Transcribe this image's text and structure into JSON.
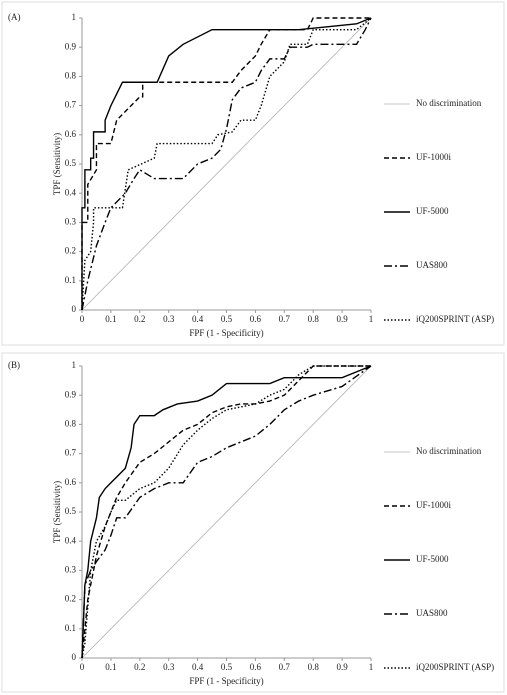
{
  "chart_data": [
    {
      "type": "line",
      "label": "(A)",
      "x_label": "FPF (1 - Specificity)",
      "y_label": "TPF (Sensitivity)",
      "xlim": [
        0,
        1
      ],
      "ylim": [
        0,
        1
      ],
      "xticks": [
        0,
        0.1,
        0.2,
        0.3,
        0.4,
        0.5,
        0.6,
        0.7,
        0.8,
        0.9,
        1
      ],
      "yticks": [
        0,
        0.1,
        0.2,
        0.3,
        0.4,
        0.5,
        0.6,
        0.7,
        0.8,
        0.9,
        1
      ],
      "legend": "right",
      "series": [
        {
          "name": "No discrimination",
          "color": "#b0b0b0",
          "dash": "none",
          "x": [
            0,
            1
          ],
          "values": [
            0,
            1
          ]
        },
        {
          "name": "UF-1000i",
          "color": "#000000",
          "dash": "5,3",
          "x": [
            0,
            0,
            0.02,
            0.02,
            0.05,
            0.05,
            0.1,
            0.12,
            0.14,
            0.17,
            0.2,
            0.21,
            0.21,
            0.3,
            0.52,
            0.55,
            0.6,
            0.62,
            0.65,
            0.78,
            0.8,
            0.95,
            1
          ],
          "values": [
            0,
            0.3,
            0.3,
            0.43,
            0.48,
            0.57,
            0.57,
            0.65,
            0.67,
            0.7,
            0.73,
            0.73,
            0.78,
            0.78,
            0.78,
            0.82,
            0.87,
            0.91,
            0.96,
            0.96,
            1,
            1,
            1
          ]
        },
        {
          "name": "UF-5000",
          "color": "#000000",
          "dash": "none",
          "x": [
            0,
            0,
            0.01,
            0.01,
            0.03,
            0.03,
            0.04,
            0.04,
            0.08,
            0.08,
            0.1,
            0.12,
            0.14,
            0.17,
            0.26,
            0.3,
            0.35,
            0.45,
            0.6,
            0.75,
            0.95,
            1
          ],
          "values": [
            0,
            0.35,
            0.35,
            0.48,
            0.48,
            0.52,
            0.52,
            0.61,
            0.61,
            0.65,
            0.7,
            0.74,
            0.78,
            0.78,
            0.78,
            0.87,
            0.91,
            0.96,
            0.96,
            0.96,
            0.98,
            1
          ]
        },
        {
          "name": "UAS800",
          "color": "#000000",
          "dash": "8,3,2,3",
          "x": [
            0,
            0.02,
            0.05,
            0.08,
            0.1,
            0.15,
            0.18,
            0.2,
            0.25,
            0.35,
            0.4,
            0.45,
            0.48,
            0.5,
            0.52,
            0.55,
            0.6,
            0.62,
            0.65,
            0.7,
            0.72,
            0.78,
            0.8,
            0.95,
            0.98,
            1
          ],
          "values": [
            0,
            0.1,
            0.22,
            0.3,
            0.35,
            0.4,
            0.45,
            0.48,
            0.45,
            0.45,
            0.5,
            0.52,
            0.55,
            0.62,
            0.72,
            0.76,
            0.78,
            0.82,
            0.86,
            0.86,
            0.9,
            0.9,
            0.91,
            0.91,
            0.96,
            1
          ]
        },
        {
          "name": "iQ200SPRINT (ASP)",
          "color": "#000000",
          "dash": "1.5,2",
          "x": [
            0,
            0.01,
            0.03,
            0.04,
            0.04,
            0.14,
            0.16,
            0.25,
            0.26,
            0.45,
            0.47,
            0.52,
            0.55,
            0.6,
            0.62,
            0.65,
            0.7,
            0.72,
            0.78,
            0.8,
            0.95,
            1
          ],
          "values": [
            0,
            0.17,
            0.2,
            0.3,
            0.35,
            0.35,
            0.48,
            0.52,
            0.57,
            0.57,
            0.6,
            0.61,
            0.65,
            0.65,
            0.7,
            0.8,
            0.85,
            0.91,
            0.91,
            0.96,
            0.96,
            1
          ]
        }
      ]
    },
    {
      "type": "line",
      "label": "(B)",
      "x_label": "FPF (1 - Specificity)",
      "y_label": "TPF (Sensitivity)",
      "xlim": [
        0,
        1
      ],
      "ylim": [
        0,
        1
      ],
      "xticks": [
        0,
        0.1,
        0.2,
        0.3,
        0.4,
        0.5,
        0.6,
        0.7,
        0.8,
        0.9,
        1
      ],
      "yticks": [
        0,
        0.1,
        0.2,
        0.3,
        0.4,
        0.5,
        0.6,
        0.7,
        0.8,
        0.9,
        1
      ],
      "legend": "right",
      "series": [
        {
          "name": "No discrimination",
          "color": "#b0b0b0",
          "dash": "none",
          "x": [
            0,
            1
          ],
          "values": [
            0,
            1
          ]
        },
        {
          "name": "UF-1000i",
          "color": "#000000",
          "dash": "5,3",
          "x": [
            0,
            0.02,
            0.05,
            0.08,
            0.1,
            0.12,
            0.15,
            0.2,
            0.25,
            0.3,
            0.35,
            0.4,
            0.45,
            0.5,
            0.55,
            0.6,
            0.65,
            0.7,
            0.75,
            0.8,
            0.85,
            1
          ],
          "values": [
            0,
            0.2,
            0.35,
            0.45,
            0.5,
            0.55,
            0.6,
            0.67,
            0.7,
            0.74,
            0.78,
            0.8,
            0.84,
            0.86,
            0.87,
            0.87,
            0.88,
            0.9,
            0.95,
            1,
            1,
            1
          ]
        },
        {
          "name": "UF-5000",
          "color": "#000000",
          "dash": "none",
          "x": [
            0,
            0.01,
            0.02,
            0.03,
            0.05,
            0.06,
            0.08,
            0.1,
            0.12,
            0.15,
            0.17,
            0.18,
            0.2,
            0.25,
            0.28,
            0.33,
            0.4,
            0.45,
            0.5,
            0.55,
            0.6,
            0.65,
            0.7,
            0.8,
            0.9,
            1
          ],
          "values": [
            0,
            0.25,
            0.3,
            0.4,
            0.48,
            0.55,
            0.58,
            0.6,
            0.62,
            0.65,
            0.72,
            0.8,
            0.83,
            0.83,
            0.85,
            0.87,
            0.88,
            0.9,
            0.94,
            0.94,
            0.94,
            0.94,
            0.96,
            0.96,
            0.96,
            1
          ]
        },
        {
          "name": "UAS800",
          "color": "#000000",
          "dash": "8,3,2,3",
          "x": [
            0,
            0.01,
            0.03,
            0.05,
            0.08,
            0.1,
            0.12,
            0.15,
            0.2,
            0.25,
            0.3,
            0.35,
            0.4,
            0.45,
            0.5,
            0.55,
            0.6,
            0.65,
            0.7,
            0.75,
            0.8,
            0.9,
            1
          ],
          "values": [
            0,
            0.25,
            0.3,
            0.33,
            0.37,
            0.42,
            0.48,
            0.48,
            0.55,
            0.58,
            0.6,
            0.6,
            0.67,
            0.69,
            0.72,
            0.74,
            0.76,
            0.8,
            0.85,
            0.88,
            0.9,
            0.93,
            1
          ]
        },
        {
          "name": "iQ200SPRINT (ASP)",
          "color": "#000000",
          "dash": "1.5,2",
          "x": [
            0,
            0.01,
            0.03,
            0.05,
            0.08,
            0.1,
            0.12,
            0.15,
            0.2,
            0.25,
            0.3,
            0.35,
            0.4,
            0.45,
            0.5,
            0.55,
            0.6,
            0.65,
            0.7,
            0.75,
            0.8,
            0.9,
            1
          ],
          "values": [
            0,
            0.05,
            0.3,
            0.4,
            0.45,
            0.5,
            0.54,
            0.54,
            0.58,
            0.6,
            0.65,
            0.73,
            0.78,
            0.82,
            0.85,
            0.86,
            0.87,
            0.9,
            0.92,
            0.97,
            1,
            1,
            1
          ]
        }
      ]
    }
  ]
}
